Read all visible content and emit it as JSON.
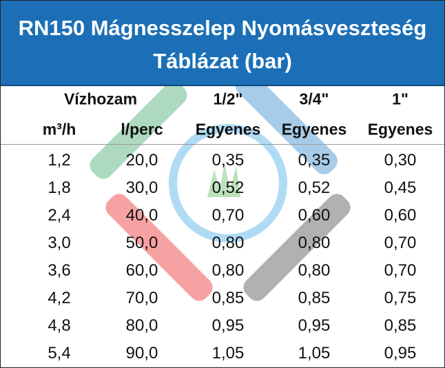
{
  "title": [
    "RN150 Mágnesszelep Nyomásveszteség",
    "Táblázat (bar)"
  ],
  "table": {
    "header_row1": [
      "Vízhozam",
      "1/2\"",
      "3/4\"",
      "1\""
    ],
    "header_row2": [
      "m³/h",
      "l/perc",
      "Egyenes",
      "Egyenes",
      "Egyenes"
    ],
    "rows": [
      [
        "1,2",
        "20,0",
        "0,35",
        "0,35",
        "0,30"
      ],
      [
        "1,8",
        "30,0",
        "0,52",
        "0,52",
        "0,45"
      ],
      [
        "2,4",
        "40,0",
        "0,70",
        "0,60",
        "0,60"
      ],
      [
        "3,0",
        "50,0",
        "0,80",
        "0,80",
        "0,70"
      ],
      [
        "3,6",
        "60,0",
        "0,80",
        "0,80",
        "0,70"
      ],
      [
        "4,2",
        "70,0",
        "0,85",
        "0,85",
        "0,75"
      ],
      [
        "4,8",
        "80,0",
        "0,95",
        "0,95",
        "0,85"
      ],
      [
        "5,4",
        "90,0",
        "1,05",
        "1,05",
        "0,95"
      ]
    ]
  }
}
